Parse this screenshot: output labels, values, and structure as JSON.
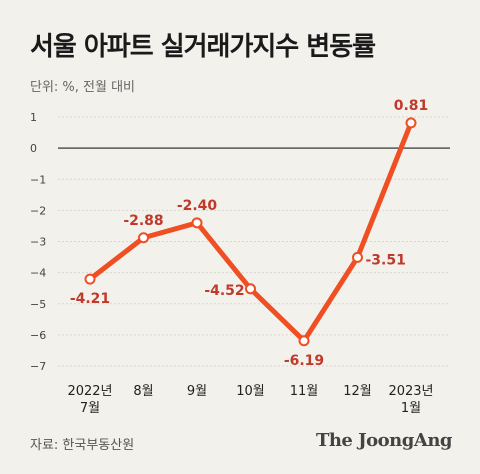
{
  "header": {
    "title": "서울 아파트 실거래가지수 변동률",
    "unit": "단위: %, 전월 대비"
  },
  "footer": {
    "source": "자료: 한국부동산원",
    "brand": "The JoongAng"
  },
  "chart_data": {
    "type": "line",
    "categories": [
      [
        "2022년",
        "7월"
      ],
      [
        "8월"
      ],
      [
        "9월"
      ],
      [
        "10월"
      ],
      [
        "11월"
      ],
      [
        "12월"
      ],
      [
        "2023년",
        "1월"
      ]
    ],
    "values": [
      -4.21,
      -2.88,
      -2.4,
      -4.52,
      -6.19,
      -3.51,
      0.81
    ],
    "data_labels": [
      "-4.21",
      "-2.88",
      "-2.40",
      "-4.52",
      "-6.19",
      "-3.51",
      "0.81"
    ],
    "y_ticks": [
      1,
      0,
      -1,
      -2,
      -3,
      -4,
      -5,
      -6,
      -7
    ],
    "y_tick_labels": [
      "1",
      "0",
      "−1",
      "−2",
      "−3",
      "−4",
      "−5",
      "−6",
      "−7"
    ],
    "ylim": [
      -7,
      1
    ],
    "grid": true,
    "line_color": "#f04e23",
    "zero_line_color": "#555555",
    "label_color": "#c0392b"
  }
}
